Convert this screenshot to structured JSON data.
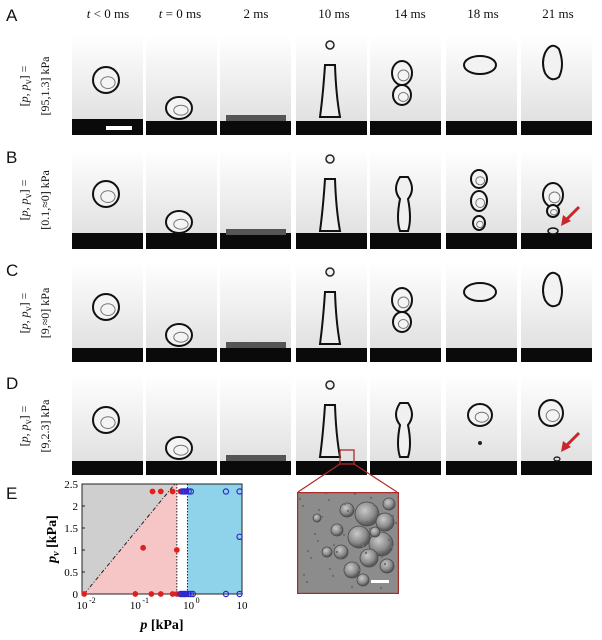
{
  "panels": {
    "labels": [
      "A",
      "B",
      "C",
      "D",
      "E"
    ]
  },
  "header": {
    "times": [
      "t < 0 ms",
      "t = 0 ms",
      "2 ms",
      "10 ms",
      "14 ms",
      "18 ms",
      "21 ms"
    ]
  },
  "rows": [
    {
      "label": "A",
      "cond_prefix": "[p, pv] =",
      "cond_value": "[95,1.3] kPa",
      "cond_line1": "[p, p",
      "cond_line2": "[95,1.3] kPa"
    },
    {
      "label": "B",
      "cond_line1": "[p, p",
      "cond_line2": "[0.1,≈0] kPa"
    },
    {
      "label": "C",
      "cond_line1": "[p, p",
      "cond_line2": "[9,≈0] kPa"
    },
    {
      "label": "D",
      "cond_line1": "[p, p",
      "cond_line2": "[9,2.3] kPa"
    }
  ],
  "chart_data": {
    "type": "scatter",
    "xlabel": "p [kPa]",
    "ylabel": "pv [kPa]",
    "xscale": "log",
    "xlim": [
      0.01,
      10
    ],
    "ylim": [
      0,
      2.5
    ],
    "xticks": [
      "10^-2",
      "10^-1",
      "10^0",
      "10^1"
    ],
    "yticks": [
      "0",
      "0.5",
      "1",
      "1.5",
      "2",
      "2.5"
    ],
    "regions": [
      {
        "name": "gray",
        "color": "#cfcfcf"
      },
      {
        "name": "pink",
        "color": "#f6c6c6"
      },
      {
        "name": "white",
        "color": "#ffffff"
      },
      {
        "name": "blue",
        "color": "#8fd3ea"
      }
    ],
    "series": [
      {
        "marker": "filled",
        "color": "#e02020",
        "points": [
          [
            0.011,
            0
          ],
          [
            0.1,
            0
          ],
          [
            0.2,
            0
          ],
          [
            0.3,
            0
          ],
          [
            0.5,
            0
          ],
          [
            0.6,
            0
          ],
          [
            0.7,
            0
          ],
          [
            0.9,
            0
          ],
          [
            0.14,
            1.05
          ],
          [
            0.21,
            2.33
          ],
          [
            0.3,
            2.33
          ],
          [
            0.5,
            2.33
          ],
          [
            0.7,
            2.33
          ],
          [
            0.9,
            2.33
          ],
          [
            0.6,
            1.0
          ]
        ]
      },
      {
        "marker": "open",
        "color": "#2a2ad0",
        "points": [
          [
            0.7,
            0
          ],
          [
            0.75,
            0
          ],
          [
            0.8,
            0
          ],
          [
            0.85,
            0
          ],
          [
            0.9,
            0
          ],
          [
            1.0,
            0
          ],
          [
            1.1,
            0
          ],
          [
            1.2,
            0
          ],
          [
            0.75,
            2.33
          ],
          [
            0.8,
            2.33
          ],
          [
            0.85,
            2.33
          ],
          [
            0.9,
            2.33
          ],
          [
            1.0,
            2.33
          ],
          [
            1.1,
            2.33
          ],
          [
            5,
            2.33
          ],
          [
            9,
            2.33
          ],
          [
            9,
            0
          ],
          [
            9,
            1.3
          ],
          [
            5,
            0
          ]
        ]
      }
    ]
  },
  "colors": {
    "arrow": "#c8262b",
    "inset_border": "#b02a2a"
  }
}
